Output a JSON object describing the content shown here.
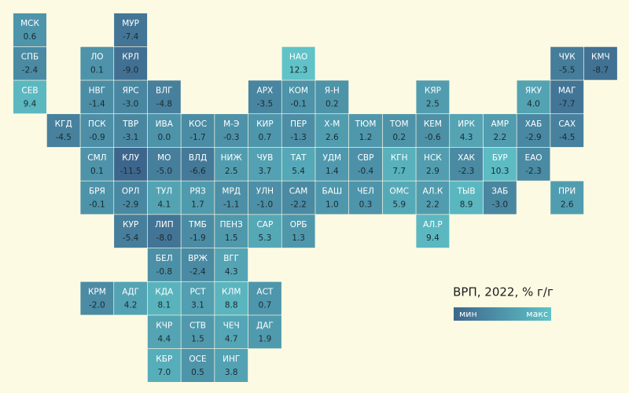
{
  "chart_data": {
    "type": "tilemap",
    "title": "ВРП, 2022, % г/г",
    "legend": {
      "min_label": "мин",
      "max_label": "макс",
      "colors": [
        "#3d668c",
        "#5fc3c8"
      ]
    },
    "background": "#fdfae3",
    "categories": [
      "МСК",
      "МУР",
      "СПБ",
      "ЛО",
      "КРЛ",
      "НАО",
      "ЧУК",
      "КМЧ",
      "СЕВ",
      "НВГ",
      "ЯРС",
      "ВЛГ",
      "АРХ",
      "КОМ",
      "Я-Н",
      "КЯР",
      "ЯКУ",
      "МАГ",
      "КГД",
      "ПСК",
      "ТВР",
      "ИВА",
      "КОС",
      "М-Э",
      "КИР",
      "ПЕР",
      "Х-М",
      "ТЮМ",
      "ТОМ",
      "КЕМ",
      "ИРК",
      "АМР",
      "ХАБ",
      "САХ",
      "СМЛ",
      "КЛУ",
      "МО",
      "ВЛД",
      "НИЖ",
      "ЧУВ",
      "ТАТ",
      "УДМ",
      "СВР",
      "КГН",
      "НСК",
      "ХАК",
      "БУР",
      "ЕАО",
      "БРЯ",
      "ОРЛ",
      "ТУЛ",
      "РЯЗ",
      "МРД",
      "УЛН",
      "САМ",
      "БАШ",
      "ЧЕЛ",
      "ОМС",
      "АЛ.К",
      "ТЫВ",
      "ЗАБ",
      "ПРИ",
      "КУР",
      "ЛИП",
      "ТМБ",
      "ПЕНЗ",
      "САР",
      "ОРБ",
      "АЛ.Р",
      "БЕЛ",
      "ВРЖ",
      "ВГГ",
      "КРМ",
      "АДГ",
      "КДА",
      "РСТ",
      "КЛМ",
      "АСТ",
      "КЧР",
      "СТВ",
      "ЧЕЧ",
      "ДАГ",
      "КБР",
      "ОСЕ",
      "ИНГ"
    ],
    "values": [
      0.6,
      -7.4,
      -2.4,
      0.1,
      -9.0,
      12.3,
      -5.5,
      -8.7,
      9.4,
      -1.4,
      -3.0,
      -4.8,
      -3.5,
      -0.1,
      0.2,
      2.5,
      4.0,
      -7.7,
      -4.5,
      -0.9,
      -3.1,
      0.0,
      -1.7,
      -0.3,
      0.7,
      -1.3,
      2.6,
      1.2,
      0.2,
      -0.6,
      4.3,
      2.2,
      -2.9,
      -4.5,
      0.1,
      -11.5,
      -5.0,
      -6.6,
      2.5,
      3.7,
      5.4,
      1.4,
      -0.4,
      7.7,
      2.9,
      -2.3,
      10.3,
      -2.3,
      -0.1,
      -2.9,
      4.1,
      1.7,
      -1.1,
      -1.0,
      -2.2,
      1.0,
      0.3,
      5.9,
      2.2,
      8.9,
      -3.0,
      2.6,
      -5.4,
      -8.0,
      -1.9,
      1.5,
      5.3,
      1.3,
      9.4,
      -0.8,
      -2.4,
      4.3,
      -2.0,
      4.2,
      8.1,
      3.1,
      8.8,
      0.7,
      4.4,
      1.5,
      4.7,
      1.9,
      7.0,
      0.5,
      3.8
    ],
    "value_labels": [
      "0.6",
      "-7.4",
      "-2.4",
      "0.1",
      "-9.0",
      "12.3",
      "-5.5",
      "-8.7",
      "9.4",
      "-1.4",
      "-3.0",
      "-4.8",
      "-3.5",
      "-0.1",
      "0.2",
      "2.5",
      "4.0",
      "-7.7",
      "-4.5",
      "-0.9",
      "-3.1",
      "0.0",
      "-1.7",
      "-0.3",
      "0.7",
      "-1.3",
      "2.6",
      "1.2",
      "0.2",
      "-0.6",
      "4.3",
      "2.2",
      "-2.9",
      "-4.5",
      "0.1",
      "-11.5",
      "-5.0",
      "-6.6",
      "2.5",
      "3.7",
      "5.4",
      "1.4",
      "-0.4",
      "7.7",
      "2.9",
      "-2.3",
      "10.3",
      "-2.3",
      "-0.1",
      "-2.9",
      "4.1",
      "1.7",
      "-1.1",
      "-1.0",
      "-2.2",
      "1.0",
      "0.3",
      "5.9",
      "2.2",
      "8.9",
      "-3.0",
      "2.6",
      "-5.4",
      "-8.0",
      "-1.9",
      "1.5",
      "5.3",
      "1.3",
      "9.4",
      "-0.8",
      "-2.4",
      "4.3",
      "-2.0",
      "4.2",
      "8.1",
      "3.1",
      "8.8",
      "0.7",
      "4.4",
      "1.5",
      "4.7",
      "1.9",
      "7.0",
      "0.5",
      "3.8"
    ]
  }
}
